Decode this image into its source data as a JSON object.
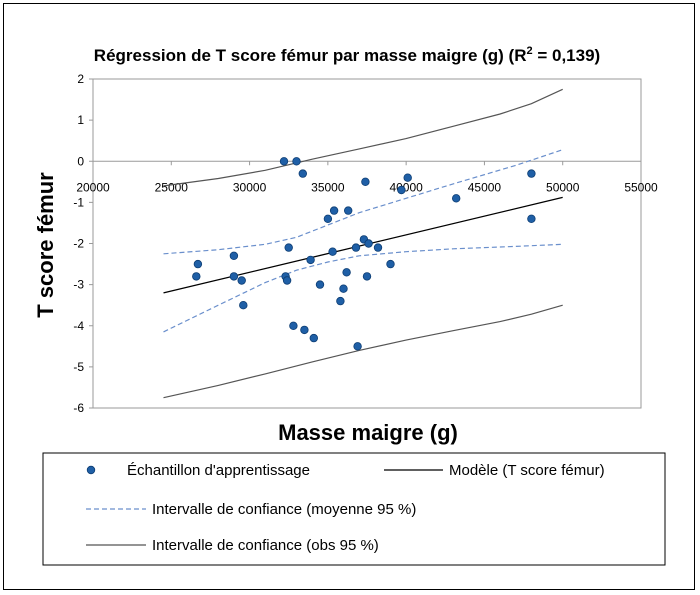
{
  "chart_data": {
    "type": "scatter",
    "title": "Régression de T score fémur par masse maigre (g) (R² = 0,139)",
    "title_parts": {
      "main": "Régression de T score fémur par masse maigre (g) (R",
      "sup": "2",
      "end": " = 0,139)"
    },
    "xlabel": "Masse maigre (g)",
    "ylabel": "T score fémur",
    "xlim": [
      20000,
      55000
    ],
    "ylim": [
      -6,
      2
    ],
    "x_ticks": [
      "20000",
      "25000",
      "30000",
      "35000",
      "40000",
      "45000",
      "50000",
      "55000"
    ],
    "y_ticks": [
      "2",
      "1",
      "0",
      "-1",
      "-2",
      "-3",
      "-4",
      "-5",
      "-6"
    ],
    "grid": false,
    "legend_position": "bottom",
    "legend": {
      "points": "Échantillon d'apprentissage",
      "model": "Modèle (T score fémur)",
      "ci_mean": "Intervalle de confiance (moyenne 95 %)",
      "ci_obs": "Intervalle de confiance (obs 95 %)"
    },
    "series": [
      {
        "name": "Échantillon d'apprentissage",
        "kind": "points",
        "color": "#1f5fa6",
        "points": [
          [
            26600,
            -2.8
          ],
          [
            26700,
            -2.5
          ],
          [
            29000,
            -2.3
          ],
          [
            29000,
            -2.8
          ],
          [
            29500,
            -2.9
          ],
          [
            29600,
            -3.5
          ],
          [
            32200,
            0.0
          ],
          [
            32300,
            -2.8
          ],
          [
            32400,
            -2.9
          ],
          [
            32500,
            -2.1
          ],
          [
            32800,
            -4.0
          ],
          [
            33000,
            0.0
          ],
          [
            33400,
            -0.3
          ],
          [
            33500,
            -4.1
          ],
          [
            33900,
            -2.4
          ],
          [
            34100,
            -4.3
          ],
          [
            34500,
            -3.0
          ],
          [
            35000,
            -1.4
          ],
          [
            35300,
            -2.2
          ],
          [
            35400,
            -1.2
          ],
          [
            35800,
            -3.4
          ],
          [
            36000,
            -3.1
          ],
          [
            36200,
            -2.7
          ],
          [
            36300,
            -1.2
          ],
          [
            36800,
            -2.1
          ],
          [
            36900,
            -4.5
          ],
          [
            37300,
            -1.9
          ],
          [
            37400,
            -0.5
          ],
          [
            37500,
            -2.8
          ],
          [
            37600,
            -2.0
          ],
          [
            38200,
            -2.1
          ],
          [
            39000,
            -2.5
          ],
          [
            39700,
            -0.7
          ],
          [
            40100,
            -0.4
          ],
          [
            43200,
            -0.9
          ],
          [
            48000,
            -0.3
          ],
          [
            48000,
            -1.4
          ]
        ]
      },
      {
        "name": "Modèle (T score fémur)",
        "kind": "line",
        "color": "#000000",
        "points": [
          [
            24500,
            -3.2
          ],
          [
            50000,
            -0.88
          ]
        ]
      },
      {
        "name": "Intervalle de confiance (moyenne 95 %)",
        "kind": "band",
        "color": "#6a8fcc",
        "upper": [
          [
            24500,
            -2.25
          ],
          [
            28000,
            -2.15
          ],
          [
            31000,
            -2.02
          ],
          [
            33000,
            -1.85
          ],
          [
            35000,
            -1.55
          ],
          [
            37000,
            -1.25
          ],
          [
            40000,
            -0.9
          ],
          [
            43000,
            -0.55
          ],
          [
            47000,
            -0.1
          ],
          [
            50000,
            0.28
          ]
        ],
        "lower": [
          [
            24500,
            -4.15
          ],
          [
            28000,
            -3.5
          ],
          [
            31000,
            -2.95
          ],
          [
            33000,
            -2.65
          ],
          [
            35000,
            -2.45
          ],
          [
            37000,
            -2.3
          ],
          [
            40000,
            -2.2
          ],
          [
            43000,
            -2.13
          ],
          [
            47000,
            -2.07
          ],
          [
            50000,
            -2.02
          ]
        ]
      },
      {
        "name": "Intervalle de confiance (obs 95 %)",
        "kind": "band",
        "color": "#555555",
        "upper": [
          [
            24500,
            -0.6
          ],
          [
            28000,
            -0.42
          ],
          [
            31000,
            -0.22
          ],
          [
            34000,
            0.05
          ],
          [
            37000,
            0.3
          ],
          [
            40000,
            0.55
          ],
          [
            43000,
            0.85
          ],
          [
            46000,
            1.15
          ],
          [
            48000,
            1.4
          ],
          [
            50000,
            1.75
          ]
        ],
        "lower": [
          [
            24500,
            -5.75
          ],
          [
            28000,
            -5.45
          ],
          [
            31000,
            -5.17
          ],
          [
            34000,
            -4.88
          ],
          [
            37000,
            -4.6
          ],
          [
            40000,
            -4.35
          ],
          [
            43000,
            -4.12
          ],
          [
            46000,
            -3.9
          ],
          [
            48000,
            -3.72
          ],
          [
            50000,
            -3.5
          ]
        ]
      }
    ]
  }
}
